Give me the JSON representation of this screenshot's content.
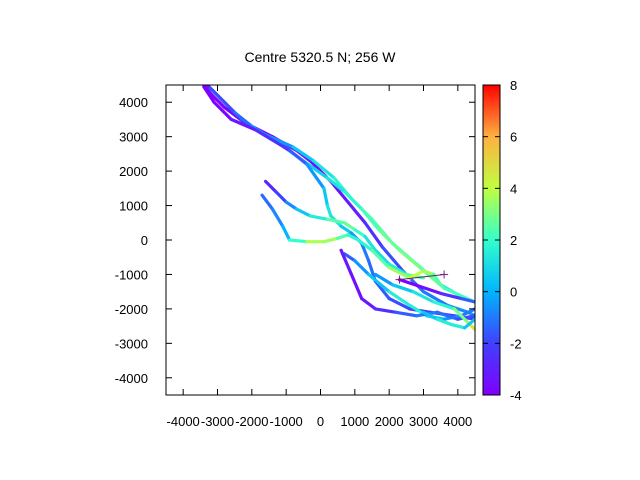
{
  "chart_data": {
    "type": "line",
    "title": "Centre 5320.5 N; 256  W",
    "xlim": [
      -4500,
      4500
    ],
    "ylim": [
      -4500,
      4500
    ],
    "x_ticks": [
      -4000,
      -3000,
      -2000,
      -1000,
      0,
      1000,
      2000,
      3000,
      4000
    ],
    "x_tick_labels": [
      "-4000",
      "-3000",
      "-2000",
      "-1000",
      "0",
      "1000",
      "2000",
      "3000",
      "4000"
    ],
    "y_ticks": [
      -4000,
      -3000,
      -2000,
      -1000,
      0,
      1000,
      2000,
      3000,
      4000
    ],
    "y_tick_labels": [
      "-4000",
      "-3000",
      "-2000",
      "-1000",
      "0",
      "1000",
      "2000",
      "3000",
      "4000"
    ],
    "colorbar": {
      "range": [
        -4,
        8
      ],
      "ticks": [
        -4,
        -2,
        0,
        2,
        4,
        6,
        8
      ],
      "tick_labels": [
        "-4",
        "-2",
        "0",
        "2",
        "4",
        "6",
        "8"
      ],
      "palette": "rainbow"
    },
    "grid": false,
    "series": [
      {
        "points": [
          [
            -3400,
            4500
          ],
          [
            -3200,
            4250
          ],
          [
            -2800,
            3850
          ],
          [
            -2200,
            3400
          ],
          [
            -1400,
            3000
          ],
          [
            -700,
            2600
          ],
          [
            -300,
            2300
          ],
          [
            300,
            1700
          ],
          [
            800,
            1100
          ],
          [
            1300,
            500
          ],
          [
            1800,
            -200
          ],
          [
            2400,
            -900
          ],
          [
            3000,
            -1500
          ],
          [
            3700,
            -1900
          ],
          [
            4300,
            -2100
          ],
          [
            4500,
            -2200
          ]
        ],
        "colors": [
          -4,
          -4,
          -4,
          -4,
          -4,
          -4,
          -3.5,
          -3.5,
          -3,
          -3,
          -2,
          -1.5,
          -1,
          -1,
          -0.5,
          -0.5
        ]
      },
      {
        "points": [
          [
            -3300,
            4500
          ],
          [
            -2900,
            4100
          ],
          [
            -2300,
            3500
          ],
          [
            -1700,
            3100
          ],
          [
            -800,
            2700
          ],
          [
            -200,
            2300
          ],
          [
            400,
            1800
          ],
          [
            900,
            1200
          ],
          [
            1500,
            600
          ],
          [
            2100,
            -100
          ],
          [
            2800,
            -700
          ],
          [
            3500,
            -1300
          ],
          [
            4200,
            -1700
          ],
          [
            4500,
            -1800
          ]
        ],
        "colors": [
          -3,
          -3,
          -2,
          -1,
          0,
          1,
          1.5,
          2,
          2.5,
          2.5,
          2,
          1.5,
          1,
          0.5
        ]
      },
      {
        "points": [
          [
            -3200,
            4400
          ],
          [
            -2500,
            3700
          ],
          [
            -2000,
            3300
          ],
          [
            -1200,
            2800
          ],
          [
            -500,
            2300
          ],
          [
            200,
            1800
          ],
          [
            700,
            1400
          ],
          [
            1200,
            900
          ],
          [
            1700,
            300
          ],
          [
            2300,
            -300
          ],
          [
            2900,
            -800
          ],
          [
            3600,
            -1400
          ],
          [
            4500,
            -1800
          ]
        ],
        "colors": [
          -2,
          -1.5,
          -1,
          0,
          0.5,
          1,
          1.5,
          2,
          2.5,
          3,
          3,
          2.5,
          2
        ]
      },
      {
        "points": [
          [
            -3400,
            4450
          ],
          [
            -3100,
            4000
          ],
          [
            -2600,
            3500
          ],
          [
            -1900,
            3200
          ],
          [
            -900,
            2600
          ],
          [
            -400,
            2200
          ],
          [
            100,
            1500
          ],
          [
            200,
            1000
          ],
          [
            300,
            700
          ],
          [
            600,
            400
          ],
          [
            900,
            200
          ],
          [
            1200,
            -100
          ],
          [
            1400,
            -600
          ],
          [
            1600,
            -1200
          ],
          [
            2000,
            -1700
          ],
          [
            2600,
            -2000
          ],
          [
            3200,
            -2100
          ],
          [
            3900,
            -2200
          ],
          [
            4500,
            -2300
          ]
        ],
        "colors": [
          -4,
          -4,
          -3.5,
          -3,
          -2,
          -1,
          0,
          1,
          1.5,
          1,
          0,
          -1,
          -1,
          -1.5,
          -1.5,
          -2,
          -2,
          -2,
          -2
        ]
      },
      {
        "points": [
          [
            -1600,
            1700
          ],
          [
            -1300,
            1400
          ],
          [
            -1000,
            1100
          ],
          [
            -700,
            900
          ],
          [
            -300,
            700
          ],
          [
            200,
            600
          ],
          [
            700,
            500
          ],
          [
            1000,
            300
          ],
          [
            1300,
            100
          ],
          [
            1600,
            -300
          ],
          [
            2000,
            -700
          ],
          [
            2500,
            -1000
          ],
          [
            3000,
            -1100
          ]
        ],
        "colors": [
          -3,
          -2.5,
          -1.5,
          0,
          1,
          2,
          3,
          2.5,
          1.5,
          1,
          1,
          2,
          3
        ]
      },
      {
        "points": [
          [
            -1700,
            1300
          ],
          [
            -1400,
            900
          ],
          [
            -1100,
            400
          ],
          [
            -900,
            0
          ],
          [
            -400,
            -50
          ],
          [
            100,
            -50
          ],
          [
            500,
            50
          ],
          [
            800,
            150
          ],
          [
            1100,
            0
          ],
          [
            1500,
            -300
          ],
          [
            2000,
            -800
          ],
          [
            2600,
            -1100
          ],
          [
            3000,
            -900
          ],
          [
            3300,
            -1000
          ],
          [
            3500,
            -1300
          ]
        ],
        "colors": [
          -1.5,
          -1,
          -0.5,
          0.5,
          3.5,
          4,
          3,
          2,
          1.5,
          2,
          3,
          4,
          4,
          3,
          2
        ]
      },
      {
        "points": [
          [
            700,
            -400
          ],
          [
            1000,
            -600
          ],
          [
            1400,
            -1000
          ],
          [
            2000,
            -1500
          ],
          [
            2600,
            -1900
          ],
          [
            3100,
            -2200
          ],
          [
            3600,
            -2300
          ],
          [
            4100,
            -2200
          ],
          [
            4500,
            -2000
          ]
        ],
        "colors": [
          -2,
          -1,
          0,
          1,
          2,
          1,
          0,
          -1,
          -1
        ]
      },
      {
        "points": [
          [
            600,
            -300
          ],
          [
            900,
            -1000
          ],
          [
            1200,
            -1700
          ],
          [
            1600,
            -2000
          ],
          [
            2200,
            -2100
          ],
          [
            2800,
            -2200
          ],
          [
            3400,
            -2100
          ],
          [
            4000,
            -2300
          ],
          [
            4500,
            -2200
          ]
        ],
        "colors": [
          -3,
          -3.5,
          -3.5,
          -3,
          -2,
          -1,
          -1,
          -1.5,
          -2
        ]
      },
      {
        "points": [
          [
            1600,
            -1000
          ],
          [
            2100,
            -1300
          ],
          [
            2700,
            -1500
          ],
          [
            3300,
            -1800
          ],
          [
            3900,
            -2000
          ],
          [
            4300,
            -2400
          ],
          [
            4500,
            -2600
          ]
        ],
        "colors": [
          -1,
          0,
          1,
          1.5,
          2,
          4,
          5
        ]
      },
      {
        "points": [
          [
            2300,
            -1150
          ],
          [
            2900,
            -1350
          ],
          [
            3500,
            -1550
          ],
          [
            4100,
            -1700
          ],
          [
            4500,
            -1800
          ]
        ],
        "colors": [
          -4,
          -4,
          -3,
          -2,
          -1
        ]
      },
      {
        "points": [
          [
            3000,
            -2100
          ],
          [
            3400,
            -2300
          ],
          [
            3800,
            -2450
          ],
          [
            4200,
            -2550
          ],
          [
            4500,
            -2300
          ]
        ],
        "colors": [
          0,
          1,
          2,
          1,
          0
        ]
      }
    ],
    "markers": [
      [
        2300,
        -1150
      ],
      [
        3600,
        -1000
      ]
    ]
  }
}
